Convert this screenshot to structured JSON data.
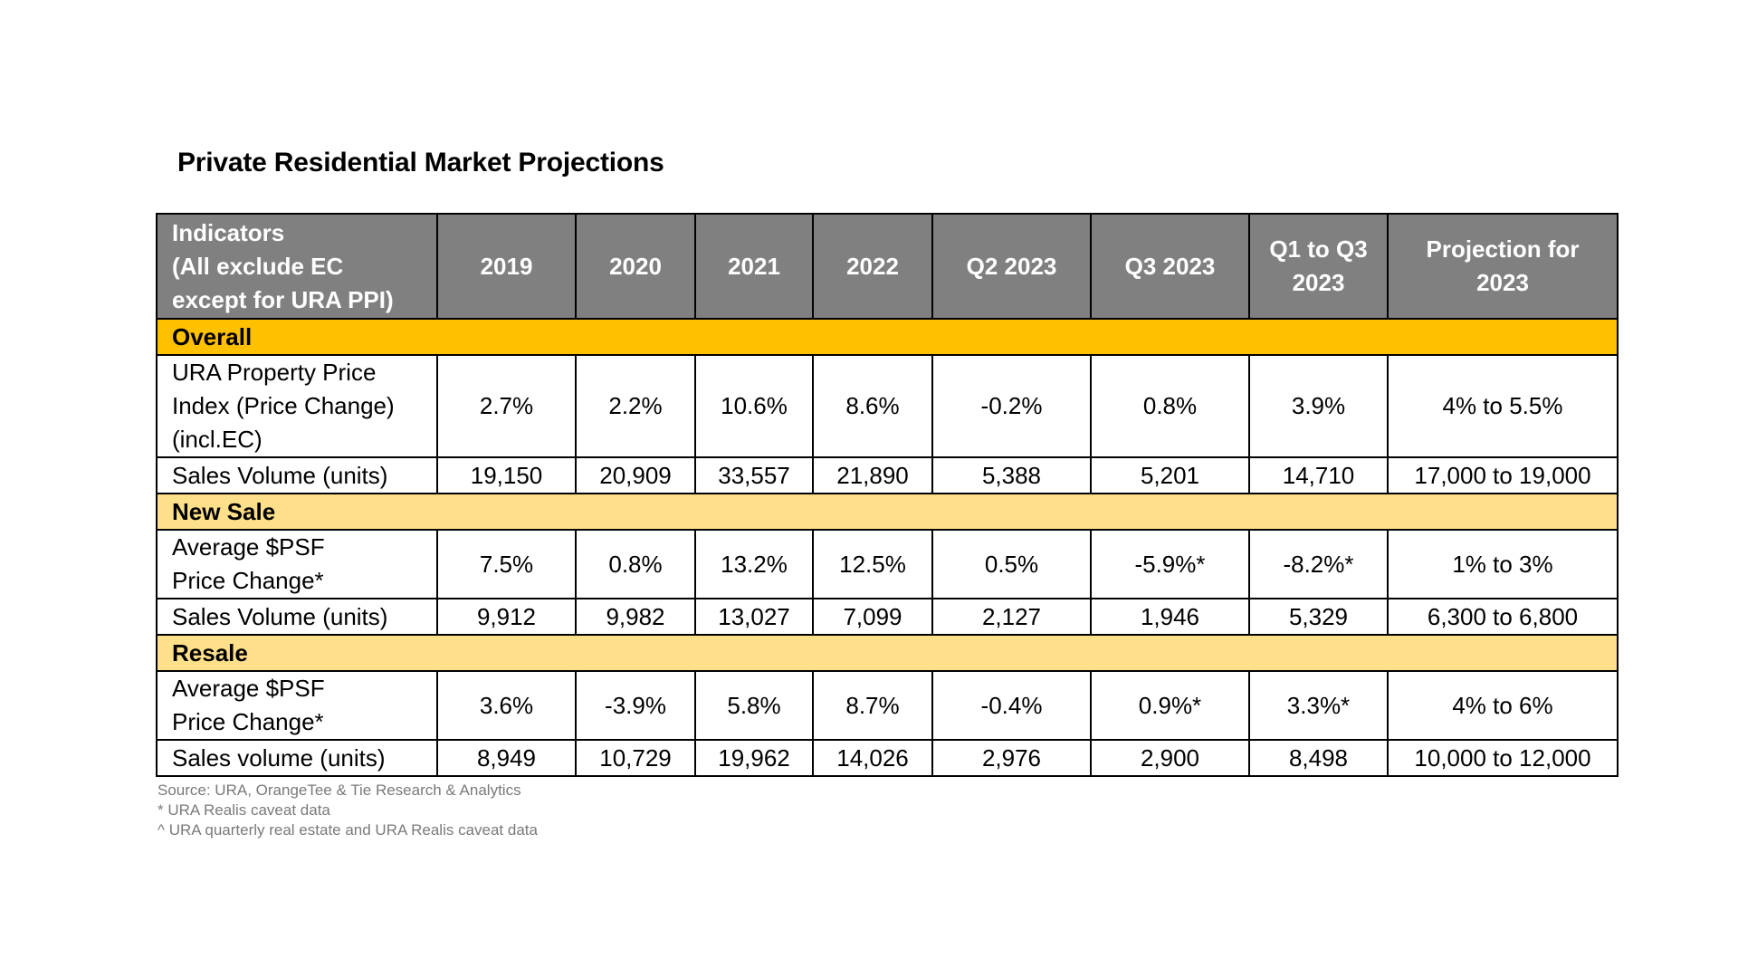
{
  "title": "Private Residential Market Projections",
  "table": {
    "headers": [
      "Indicators\n(All exclude EC\nexcept for URA PPI)",
      "2019",
      "2020",
      "2021",
      "2022",
      "Q2 2023",
      "Q3 2023",
      "Q1 to Q3\n2023",
      "Projection for\n2023"
    ],
    "sections": [
      {
        "name": "Overall",
        "rows": [
          {
            "label": "URA Property Price\nIndex (Price Change)\n(incl.EC)",
            "values": [
              "2.7%",
              "2.2%",
              "10.6%",
              "8.6%",
              "-0.2%",
              "0.8%",
              "3.9%",
              "4% to 5.5%"
            ]
          },
          {
            "label": "Sales Volume (units)",
            "values": [
              "19,150",
              "20,909",
              "33,557",
              "21,890",
              "5,388",
              "5,201",
              "14,710",
              "17,000 to 19,000"
            ]
          }
        ]
      },
      {
        "name": "New Sale",
        "rows": [
          {
            "label": "Average $PSF\nPrice Change*",
            "values": [
              "7.5%",
              "0.8%",
              "13.2%",
              "12.5%",
              "0.5%",
              "-5.9%*",
              "-8.2%*",
              "1% to 3%"
            ]
          },
          {
            "label": "Sales Volume (units)",
            "values": [
              "9,912",
              "9,982",
              "13,027",
              "7,099",
              "2,127",
              "1,946",
              "5,329",
              "6,300 to 6,800"
            ]
          }
        ]
      },
      {
        "name": "Resale",
        "rows": [
          {
            "label": "Average $PSF\nPrice Change*",
            "values": [
              "3.6%",
              "-3.9%",
              "5.8%",
              "8.7%",
              "-0.4%",
              "0.9%*",
              "3.3%*",
              "4% to 6%"
            ]
          },
          {
            "label": "Sales volume (units)",
            "values": [
              "8,949",
              "10,729",
              "19,962",
              "14,026",
              "2,976",
              "2,900",
              "8,498",
              "10,000 to 12,000"
            ]
          }
        ]
      }
    ]
  },
  "notes": [
    "Source: URA, OrangeTee & Tie Research & Analytics",
    "* URA Realis caveat data",
    "^ URA quarterly real estate and URA Realis caveat data"
  ],
  "colors": {
    "header_bg": "#808080",
    "overall_bg": "#ffc000",
    "section_bg": "#ffe08a",
    "note_text": "#7a7a7a"
  }
}
